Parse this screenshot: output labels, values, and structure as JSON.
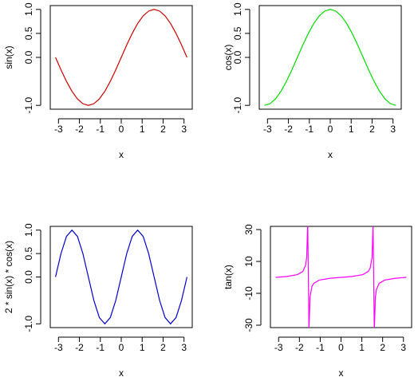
{
  "chart_data": [
    {
      "type": "line",
      "xlabel": "x",
      "ylabel": "sin(x)",
      "color": "#cc0000",
      "x": [
        -3.142,
        -2.88,
        -2.618,
        -2.356,
        -2.094,
        -1.833,
        -1.571,
        -1.309,
        -1.047,
        -0.785,
        -0.524,
        -0.262,
        0,
        0.262,
        0.524,
        0.785,
        1.047,
        1.309,
        1.571,
        1.833,
        2.094,
        2.356,
        2.618,
        2.88,
        3.142
      ],
      "values": [
        0,
        -0.259,
        -0.5,
        -0.707,
        -0.866,
        -0.966,
        -1,
        -0.966,
        -0.866,
        -0.707,
        -0.5,
        -0.259,
        0,
        0.259,
        0.5,
        0.707,
        0.866,
        0.966,
        1,
        0.966,
        0.866,
        0.707,
        0.5,
        0.259,
        0
      ],
      "xlim": [
        -3.393,
        3.393
      ],
      "ylim": [
        -1.08,
        1.08
      ],
      "xticks": [
        -3,
        -2,
        -1,
        0,
        1,
        2,
        3
      ],
      "yticks": [
        {
          "value": -1,
          "label": "-1.0"
        },
        {
          "value": 0,
          "label": "0.0"
        },
        0.5,
        {
          "value": 1,
          "label": "1.0"
        }
      ]
    },
    {
      "type": "line",
      "xlabel": "x",
      "ylabel": "cos(x)",
      "color": "#00dd00",
      "x": [
        -3.142,
        -2.88,
        -2.618,
        -2.356,
        -2.094,
        -1.833,
        -1.571,
        -1.309,
        -1.047,
        -0.785,
        -0.524,
        -0.262,
        0,
        0.262,
        0.524,
        0.785,
        1.047,
        1.309,
        1.571,
        1.833,
        2.094,
        2.356,
        2.618,
        2.88,
        3.142
      ],
      "values": [
        -1,
        -0.966,
        -0.866,
        -0.707,
        -0.5,
        -0.259,
        0,
        0.259,
        0.5,
        0.707,
        0.866,
        0.966,
        1,
        0.966,
        0.866,
        0.707,
        0.5,
        0.259,
        0,
        -0.259,
        -0.5,
        -0.707,
        -0.866,
        -0.966,
        -1
      ],
      "xlim": [
        -3.393,
        3.393
      ],
      "ylim": [
        -1.08,
        1.08
      ],
      "xticks": [
        -3,
        -2,
        -1,
        0,
        1,
        2,
        3
      ],
      "yticks": [
        {
          "value": -1,
          "label": "-1.0"
        },
        {
          "value": 0,
          "label": "0.0"
        },
        0.5,
        {
          "value": 1,
          "label": "1.0"
        }
      ]
    },
    {
      "type": "line",
      "xlabel": "x",
      "ylabel": "2 * sin(x) * cos(x)",
      "color": "#0000cc",
      "x": [
        -3.142,
        -2.88,
        -2.618,
        -2.356,
        -2.094,
        -1.833,
        -1.571,
        -1.309,
        -1.047,
        -0.785,
        -0.524,
        -0.262,
        0,
        0.262,
        0.524,
        0.785,
        1.047,
        1.309,
        1.571,
        1.833,
        2.094,
        2.356,
        2.618,
        2.88,
        3.142
      ],
      "values": [
        0,
        0.5,
        0.866,
        1,
        0.866,
        0.5,
        0,
        -0.5,
        -0.866,
        -1,
        -0.866,
        -0.5,
        0,
        0.5,
        0.866,
        1,
        0.866,
        0.5,
        0,
        -0.5,
        -0.866,
        -1,
        -0.866,
        -0.5,
        0
      ],
      "xlim": [
        -3.393,
        3.393
      ],
      "ylim": [
        -1.08,
        1.08
      ],
      "xticks": [
        -3,
        -2,
        -1,
        0,
        1,
        2,
        3
      ],
      "yticks": [
        {
          "value": -1,
          "label": "-1.0"
        },
        {
          "value": 0,
          "label": "0.0"
        },
        0.5,
        {
          "value": 1,
          "label": "1.0"
        }
      ]
    },
    {
      "type": "line",
      "xlabel": "x",
      "ylabel": "tan(x)",
      "color": "#ff00ff",
      "x": [
        -3.142,
        -2.618,
        -2.094,
        -1.833,
        -1.7,
        -1.65,
        -1.6,
        -1.54,
        -1.49,
        -1.4,
        -1.309,
        -1.047,
        -0.524,
        0,
        0.524,
        1.047,
        1.309,
        1.4,
        1.49,
        1.54,
        1.6,
        1.65,
        1.7,
        1.833,
        2.094,
        2.618,
        3.142
      ],
      "values": [
        0,
        0.577,
        1.732,
        3.732,
        7.7,
        12.6,
        34.2,
        -32.5,
        -12.35,
        -5.8,
        -3.732,
        -1.732,
        -0.577,
        0,
        0.577,
        1.732,
        3.732,
        5.8,
        12.35,
        32.5,
        -34.2,
        -12.6,
        -7.7,
        -3.732,
        -1.732,
        -0.577,
        0
      ],
      "xlim": [
        -3.393,
        3.393
      ],
      "ylim": [
        -31.5,
        32
      ],
      "xticks": [
        -3,
        -2,
        -1,
        0,
        1,
        2,
        3
      ],
      "yticks": [
        -30,
        -10,
        10,
        30
      ]
    }
  ]
}
